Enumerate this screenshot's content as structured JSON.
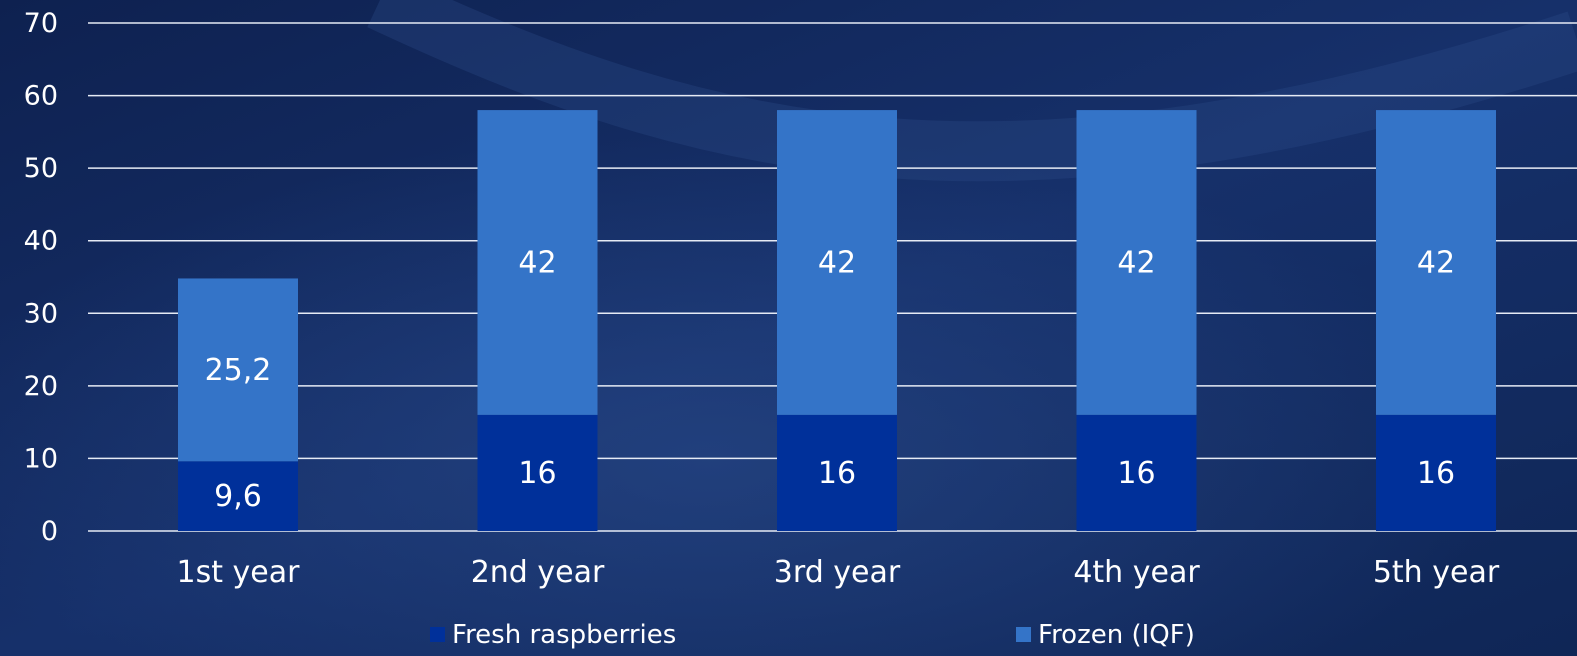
{
  "chart_data": {
    "type": "bar",
    "stacked": true,
    "categories": [
      "1st year",
      "2nd year",
      "3rd year",
      "4th year",
      "5th year"
    ],
    "series": [
      {
        "name": "Fresh raspberries",
        "values": [
          9.6,
          16,
          16,
          16,
          16
        ],
        "labels": [
          "9,6",
          "16",
          "16",
          "16",
          "16"
        ],
        "color": "#00309a"
      },
      {
        "name": "Frozen (IQF)",
        "values": [
          25.2,
          42,
          42,
          42,
          42
        ],
        "labels": [
          "25,2",
          "42",
          "42",
          "42",
          "42"
        ],
        "color": "#3474c8"
      }
    ],
    "title": "",
    "xlabel": "",
    "ylabel": "",
    "ylim": [
      0,
      70
    ],
    "yticks": [
      0,
      10,
      20,
      30,
      40,
      50,
      60,
      70
    ],
    "grid": true,
    "legend": "bottom-center"
  },
  "colors": {
    "background": "#10275a",
    "grid": "#e6ebf5",
    "text": "#ffffff"
  }
}
